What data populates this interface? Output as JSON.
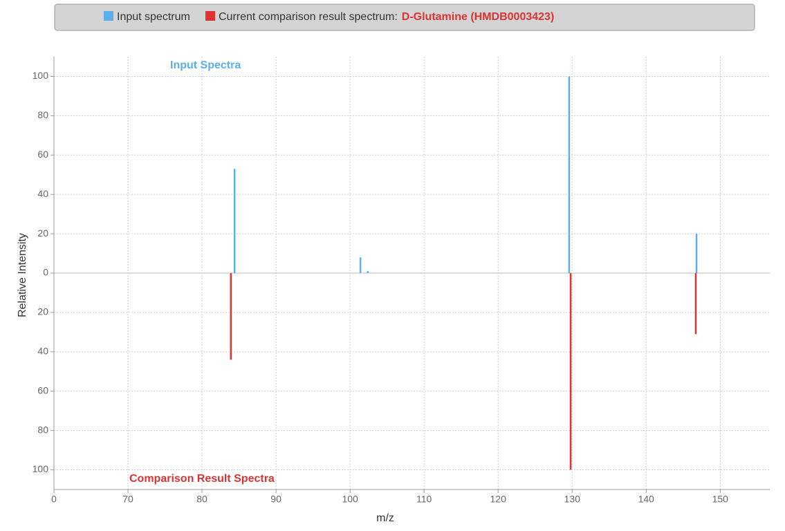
{
  "chart_data": {
    "type": "mirror-spectrum",
    "compound": "D-Glutamine (HMDB0003423)",
    "x_label": "m/z",
    "y_label": "Relative Intensity",
    "annotations": [
      "Input Spectra",
      "Comparison Result Spectra"
    ],
    "series": [
      {
        "name": "Input spectrum",
        "color": "#5aafe8",
        "x": [
          84.4,
          101.4,
          102.4,
          129.6,
          146.8
        ],
        "values": [
          53,
          8,
          1,
          100,
          20
        ]
      },
      {
        "name": "Current comparison result spectrum:",
        "color": "#dd3333",
        "x": [
          83.9,
          129.8,
          146.7
        ],
        "values": [
          -44,
          -100,
          -31
        ]
      }
    ],
    "xlim": [
      60,
      156.7
    ],
    "xticks": [
      {
        "value": 60,
        "label": "0"
      },
      70,
      80,
      90,
      100,
      110,
      120,
      130,
      140,
      150
    ],
    "ylim": [
      -110,
      110
    ],
    "yticks": [
      {
        "value": -100,
        "label": "100"
      },
      {
        "value": -80,
        "label": "80"
      },
      {
        "value": -60,
        "label": "60"
      },
      {
        "value": -40,
        "label": "40"
      },
      {
        "value": -20,
        "label": "20"
      },
      0,
      20,
      40,
      60,
      80,
      100
    ],
    "grid": true
  }
}
